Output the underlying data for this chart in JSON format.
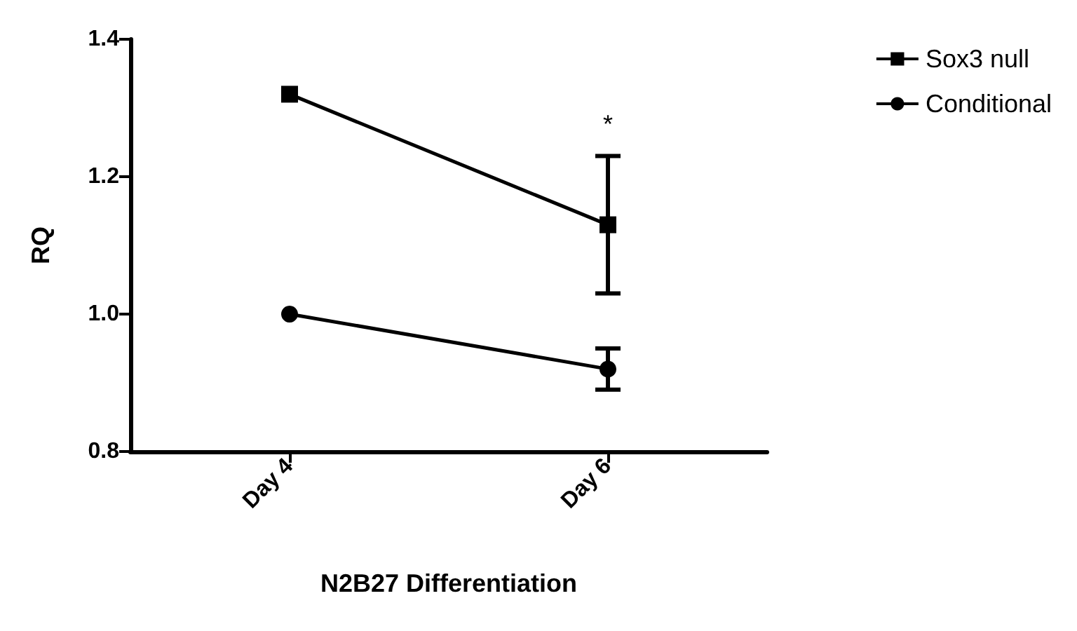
{
  "chart_data": {
    "type": "line",
    "xlabel": "N2B27 Differentiation",
    "ylabel": "RQ",
    "categories": [
      "Day 4",
      "Day 6"
    ],
    "series": [
      {
        "name": "Sox3 null",
        "color": "#000000",
        "marker": "square",
        "values": [
          1.32,
          1.13
        ],
        "errors": [
          null,
          0.1
        ]
      },
      {
        "name": "Conditional",
        "color": "#000000",
        "marker": "circle",
        "values": [
          1.0,
          0.92
        ],
        "errors": [
          null,
          0.03
        ]
      }
    ],
    "ylim": [
      0.8,
      1.4
    ],
    "yticks": [
      0.8,
      {
        "value": 1.0,
        "label": "1.0"
      },
      1.2,
      1.4
    ],
    "grid": false,
    "legend": "top right",
    "annotations": [
      "*"
    ]
  }
}
